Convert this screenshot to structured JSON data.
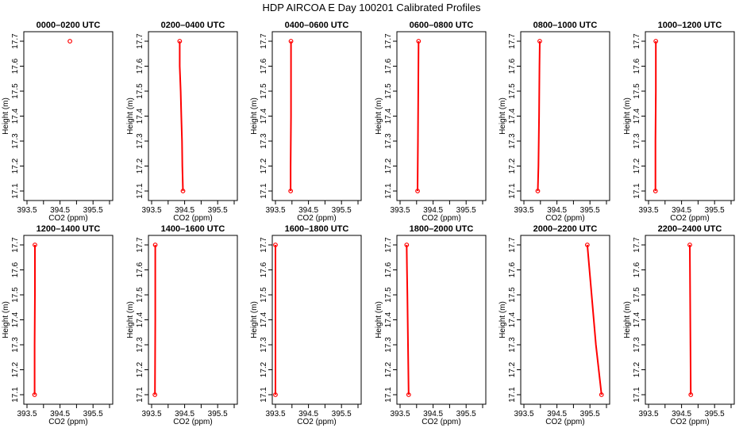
{
  "figure": {
    "title": "HDP AIRCOA E  Day 100201  Calibrated Profiles"
  },
  "chart_data": [
    {
      "type": "line",
      "title": "0000–0200 UTC",
      "xlabel": "CO2 (ppm)",
      "ylabel": "Height (m)",
      "xlim": [
        393.5,
        396.0
      ],
      "ylim": [
        17.1,
        17.7
      ],
      "xticks": [
        "393.5",
        "394.5",
        "395.5"
      ],
      "yticks": [
        "17.1",
        "17.2",
        "17.3",
        "17.4",
        "17.5",
        "17.6",
        "17.7"
      ],
      "series": [
        {
          "color": "#ff0000",
          "line": [],
          "points": [
            [
              394.8,
              17.7
            ]
          ]
        }
      ]
    },
    {
      "type": "line",
      "title": "0200–0400 UTC",
      "xlabel": "CO2 (ppm)",
      "ylabel": "Height (m)",
      "xlim": [
        393.5,
        396.0
      ],
      "ylim": [
        17.1,
        17.7
      ],
      "xticks": [
        "393.5",
        "394.5",
        "395.5"
      ],
      "yticks": [
        "17.1",
        "17.2",
        "17.3",
        "17.4",
        "17.5",
        "17.6",
        "17.7"
      ],
      "series": [
        {
          "color": "#ff0000",
          "line": [
            [
              394.35,
              17.7
            ],
            [
              394.35,
              17.6
            ],
            [
              394.38,
              17.5
            ],
            [
              394.4,
              17.4
            ],
            [
              394.42,
              17.3
            ],
            [
              394.43,
              17.2
            ],
            [
              394.45,
              17.1
            ]
          ],
          "points": [
            [
              394.35,
              17.7
            ],
            [
              394.45,
              17.1
            ]
          ]
        }
      ]
    },
    {
      "type": "line",
      "title": "0400–0600 UTC",
      "xlabel": "CO2 (ppm)",
      "ylabel": "Height (m)",
      "xlim": [
        393.5,
        396.0
      ],
      "ylim": [
        17.1,
        17.7
      ],
      "xticks": [
        "393.5",
        "394.5",
        "395.5"
      ],
      "yticks": [
        "17.1",
        "17.2",
        "17.3",
        "17.4",
        "17.5",
        "17.6",
        "17.7"
      ],
      "series": [
        {
          "color": "#ff0000",
          "line": [
            [
              393.97,
              17.7
            ],
            [
              393.97,
              17.4
            ],
            [
              393.96,
              17.2
            ],
            [
              393.96,
              17.1
            ]
          ],
          "points": [
            [
              393.97,
              17.7
            ],
            [
              393.96,
              17.1
            ]
          ]
        }
      ]
    },
    {
      "type": "line",
      "title": "0600–0800 UTC",
      "xlabel": "CO2 (ppm)",
      "ylabel": "Height (m)",
      "xlim": [
        393.5,
        396.0
      ],
      "ylim": [
        17.1,
        17.7
      ],
      "xticks": [
        "393.5",
        "394.5",
        "395.5"
      ],
      "yticks": [
        "17.1",
        "17.2",
        "17.3",
        "17.4",
        "17.5",
        "17.6",
        "17.7"
      ],
      "series": [
        {
          "color": "#ff0000",
          "line": [
            [
              394.06,
              17.7
            ],
            [
              394.05,
              17.5
            ],
            [
              394.04,
              17.3
            ],
            [
              394.03,
              17.1
            ]
          ],
          "points": [
            [
              394.06,
              17.7
            ],
            [
              394.03,
              17.1
            ]
          ]
        }
      ]
    },
    {
      "type": "line",
      "title": "0800–1000 UTC",
      "xlabel": "CO2 (ppm)",
      "ylabel": "Height (m)",
      "xlim": [
        393.5,
        396.0
      ],
      "ylim": [
        17.1,
        17.7
      ],
      "xticks": [
        "393.5",
        "394.5",
        "395.5"
      ],
      "yticks": [
        "17.1",
        "17.2",
        "17.3",
        "17.4",
        "17.5",
        "17.6",
        "17.7"
      ],
      "series": [
        {
          "color": "#ff0000",
          "line": [
            [
              393.98,
              17.7
            ],
            [
              393.97,
              17.6
            ],
            [
              393.96,
              17.4
            ],
            [
              393.94,
              17.2
            ],
            [
              393.92,
              17.1
            ]
          ],
          "points": [
            [
              393.98,
              17.7
            ],
            [
              393.92,
              17.1
            ]
          ]
        }
      ]
    },
    {
      "type": "line",
      "title": "1000–1200 UTC",
      "xlabel": "CO2 (ppm)",
      "ylabel": "Height (m)",
      "xlim": [
        393.5,
        396.0
      ],
      "ylim": [
        17.1,
        17.7
      ],
      "xticks": [
        "393.5",
        "394.5",
        "395.5"
      ],
      "yticks": [
        "17.1",
        "17.2",
        "17.3",
        "17.4",
        "17.5",
        "17.6",
        "17.7"
      ],
      "series": [
        {
          "color": "#ff0000",
          "line": [
            [
              393.72,
              17.7
            ],
            [
              393.72,
              17.5
            ],
            [
              393.71,
              17.3
            ],
            [
              393.71,
              17.1
            ]
          ],
          "points": [
            [
              393.72,
              17.7
            ],
            [
              393.71,
              17.1
            ]
          ]
        }
      ]
    },
    {
      "type": "line",
      "title": "1200–1400 UTC",
      "xlabel": "CO2 (ppm)",
      "ylabel": "Height (m)",
      "xlim": [
        393.5,
        396.0
      ],
      "ylim": [
        17.1,
        17.7
      ],
      "xticks": [
        "393.5",
        "394.5",
        "395.5"
      ],
      "yticks": [
        "17.1",
        "17.2",
        "17.3",
        "17.4",
        "17.5",
        "17.6",
        "17.7"
      ],
      "series": [
        {
          "color": "#ff0000",
          "line": [
            [
              393.74,
              17.7
            ],
            [
              393.74,
              17.5
            ],
            [
              393.73,
              17.3
            ],
            [
              393.73,
              17.1
            ]
          ],
          "points": [
            [
              393.74,
              17.7
            ],
            [
              393.73,
              17.1
            ]
          ]
        }
      ]
    },
    {
      "type": "line",
      "title": "1400–1600 UTC",
      "xlabel": "CO2 (ppm)",
      "ylabel": "Height (m)",
      "xlim": [
        393.5,
        396.0
      ],
      "ylim": [
        17.1,
        17.7
      ],
      "xticks": [
        "393.5",
        "394.5",
        "395.5"
      ],
      "yticks": [
        "17.1",
        "17.2",
        "17.3",
        "17.4",
        "17.5",
        "17.6",
        "17.7"
      ],
      "series": [
        {
          "color": "#ff0000",
          "line": [
            [
              393.61,
              17.7
            ],
            [
              393.61,
              17.4
            ],
            [
              393.6,
              17.1
            ]
          ],
          "points": [
            [
              393.61,
              17.7
            ],
            [
              393.6,
              17.1
            ]
          ]
        }
      ]
    },
    {
      "type": "line",
      "title": "1600–1800 UTC",
      "xlabel": "CO2 (ppm)",
      "ylabel": "Height (m)",
      "xlim": [
        393.5,
        396.0
      ],
      "ylim": [
        17.1,
        17.7
      ],
      "xticks": [
        "393.5",
        "394.5",
        "395.5"
      ],
      "yticks": [
        "17.1",
        "17.2",
        "17.3",
        "17.4",
        "17.5",
        "17.6",
        "17.7"
      ],
      "series": [
        {
          "color": "#ff0000",
          "line": [
            [
              393.5,
              17.7
            ],
            [
              393.5,
              17.1
            ]
          ],
          "points": [
            [
              393.5,
              17.7
            ],
            [
              393.5,
              17.1
            ]
          ]
        }
      ]
    },
    {
      "type": "line",
      "title": "1800–2000 UTC",
      "xlabel": "CO2 (ppm)",
      "ylabel": "Height (m)",
      "xlim": [
        393.5,
        396.0
      ],
      "ylim": [
        17.1,
        17.7
      ],
      "xticks": [
        "393.5",
        "394.5",
        "395.5"
      ],
      "yticks": [
        "17.1",
        "17.2",
        "17.3",
        "17.4",
        "17.5",
        "17.6",
        "17.7"
      ],
      "series": [
        {
          "color": "#ff0000",
          "line": [
            [
              393.7,
              17.7
            ],
            [
              393.71,
              17.6
            ],
            [
              393.72,
              17.5
            ],
            [
              393.73,
              17.4
            ],
            [
              393.74,
              17.3
            ],
            [
              393.75,
              17.2
            ],
            [
              393.76,
              17.1
            ]
          ],
          "points": [
            [
              393.7,
              17.7
            ],
            [
              393.76,
              17.1
            ]
          ]
        }
      ]
    },
    {
      "type": "line",
      "title": "2000–2200 UTC",
      "xlabel": "CO2 (ppm)",
      "ylabel": "Height (m)",
      "xlim": [
        393.5,
        396.0
      ],
      "ylim": [
        17.1,
        17.7
      ],
      "xticks": [
        "393.5",
        "394.5",
        "395.5"
      ],
      "yticks": [
        "17.1",
        "17.2",
        "17.3",
        "17.4",
        "17.5",
        "17.6",
        "17.7"
      ],
      "series": [
        {
          "color": "#ff0000",
          "line": [
            [
              395.42,
              17.7
            ],
            [
              395.55,
              17.5
            ],
            [
              395.68,
              17.3
            ],
            [
              395.85,
              17.1
            ]
          ],
          "points": [
            [
              395.42,
              17.7
            ],
            [
              395.85,
              17.1
            ]
          ]
        }
      ]
    },
    {
      "type": "line",
      "title": "2200–2400 UTC",
      "xlabel": "CO2 (ppm)",
      "ylabel": "Height (m)",
      "xlim": [
        393.5,
        396.0
      ],
      "ylim": [
        17.1,
        17.7
      ],
      "xticks": [
        "393.5",
        "394.5",
        "395.5"
      ],
      "yticks": [
        "17.1",
        "17.2",
        "17.3",
        "17.4",
        "17.5",
        "17.6",
        "17.7"
      ],
      "series": [
        {
          "color": "#ff0000",
          "line": [
            [
              394.75,
              17.7
            ],
            [
              394.76,
              17.5
            ],
            [
              394.77,
              17.3
            ],
            [
              394.78,
              17.1
            ]
          ],
          "points": [
            [
              394.75,
              17.7
            ],
            [
              394.78,
              17.1
            ]
          ]
        }
      ]
    }
  ]
}
